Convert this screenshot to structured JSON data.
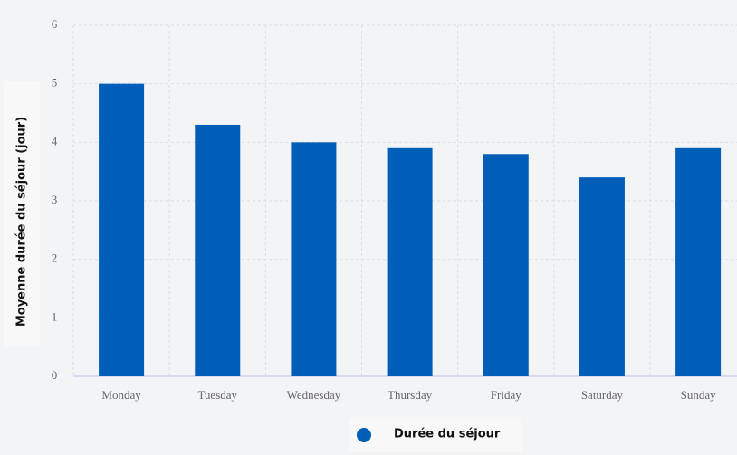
{
  "chart_data": {
    "type": "bar",
    "y_label": "Moyenne durée du séjour (jour)",
    "categories": [
      "Monday",
      "Tuesday",
      "Wednesday",
      "Thursday",
      "Friday",
      "Saturday",
      "Sunday"
    ],
    "series": [
      {
        "name": "Durée du séjour",
        "color": "#005eb8",
        "values": [
          5,
          4.3,
          4,
          3.9,
          3.8,
          3.4,
          3.9
        ]
      }
    ],
    "ylim": [
      0,
      6
    ],
    "yticks": [
      0,
      1,
      2,
      3,
      4,
      5,
      6
    ],
    "grid": true,
    "legend": "bottom"
  }
}
